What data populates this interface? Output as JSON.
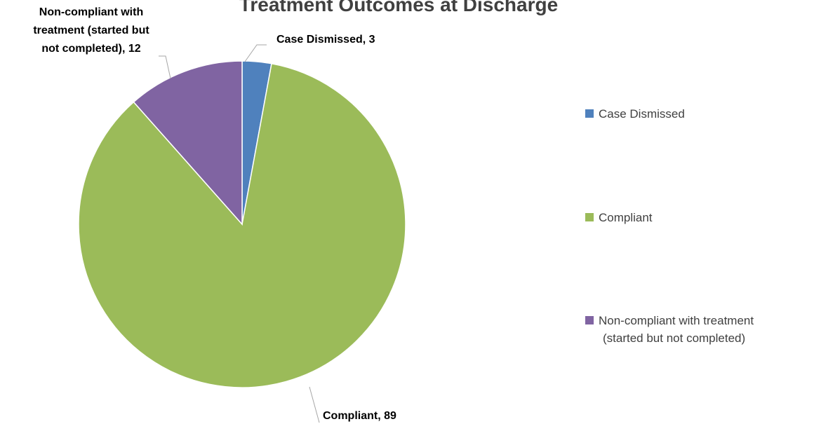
{
  "chart_data": {
    "type": "pie",
    "title": "Treatment Outcomes at Discharge",
    "categories": [
      "Case Dismissed",
      "Compliant",
      "Non-compliant with treatment (started but not completed)"
    ],
    "values": [
      3,
      89,
      12
    ],
    "colors": [
      "#4f81bd",
      "#9bbb59",
      "#8064a2"
    ],
    "data_labels": [
      {
        "lines": [
          "Case Dismissed, 3"
        ]
      },
      {
        "lines": [
          "Compliant, 89"
        ]
      },
      {
        "lines": [
          "Non-compliant with",
          "treatment (started but",
          "not completed), 12"
        ]
      }
    ],
    "legend": {
      "position": "right",
      "entries": [
        {
          "lines": [
            "Case Dismissed"
          ]
        },
        {
          "lines": [
            "Compliant"
          ]
        },
        {
          "lines": [
            "Non-compliant with treatment",
            "(started but not completed)"
          ]
        }
      ]
    }
  }
}
